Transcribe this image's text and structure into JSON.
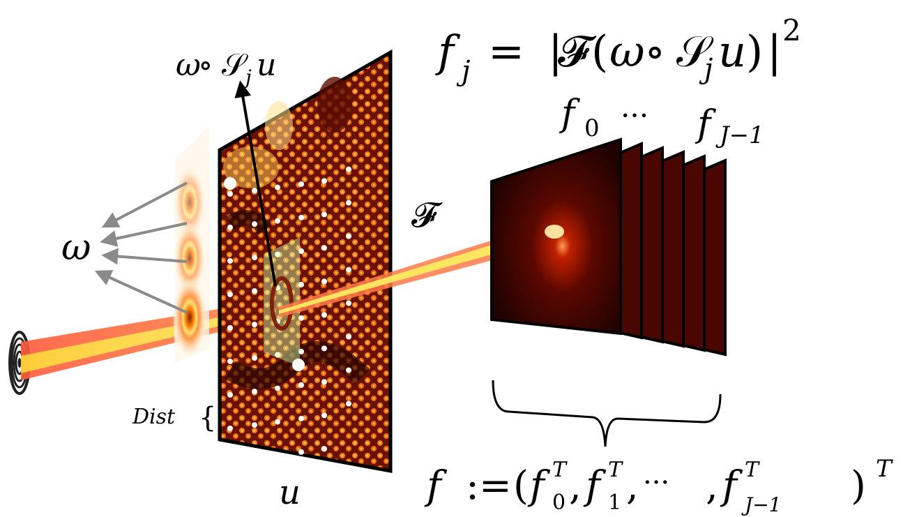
{
  "figure": {
    "equation_top": {
      "f_j": "f",
      "j_sub": "j",
      "eq": "=",
      "abs_open": "|",
      "F": "𝓕",
      "paren_open": "(",
      "omega": "ω",
      "circ": "∘",
      "S": "𝒮",
      "j2": "j",
      "u": "u",
      "paren_close": ")",
      "abs_close": "|",
      "sq": "2"
    },
    "label_omega_S_u": {
      "omega": "ω",
      "circ": "∘",
      "S": "𝒮",
      "j": "j",
      "u": "u"
    },
    "label_f0": {
      "f": "f",
      "sub": "0"
    },
    "label_dots": "···",
    "label_fJ1": {
      "f": "f",
      "sub": "J−1"
    },
    "label_F": "𝓕",
    "label_omega": "ω",
    "label_dist": "Dist",
    "label_dist_brace": "{",
    "label_u": "u",
    "equation_bottom": {
      "f": "f",
      "assign": ":=",
      "open": "(",
      "f0": "f",
      "f0_sub": "0",
      "f0_sup": "T",
      "c1": ",",
      "f1": "f",
      "f1_sub": "1",
      "f1_sup": "T",
      "c2": ",",
      "dots": "···",
      "c3": ",",
      "fj": "f",
      "fj_sub": "J−1",
      "fj_sup": "T",
      "close": ")",
      "sup": "T"
    }
  },
  "colors": {
    "sample_bg": "#5a0c00",
    "sample_bright": "#ff8a1a",
    "diffraction_bg": "#300400",
    "beam_outer": "#ff6a3a",
    "beam_inner": "#ffe84a",
    "arrow_gray": "#8a8a8a",
    "probe_ring": "#ff9c2a"
  }
}
